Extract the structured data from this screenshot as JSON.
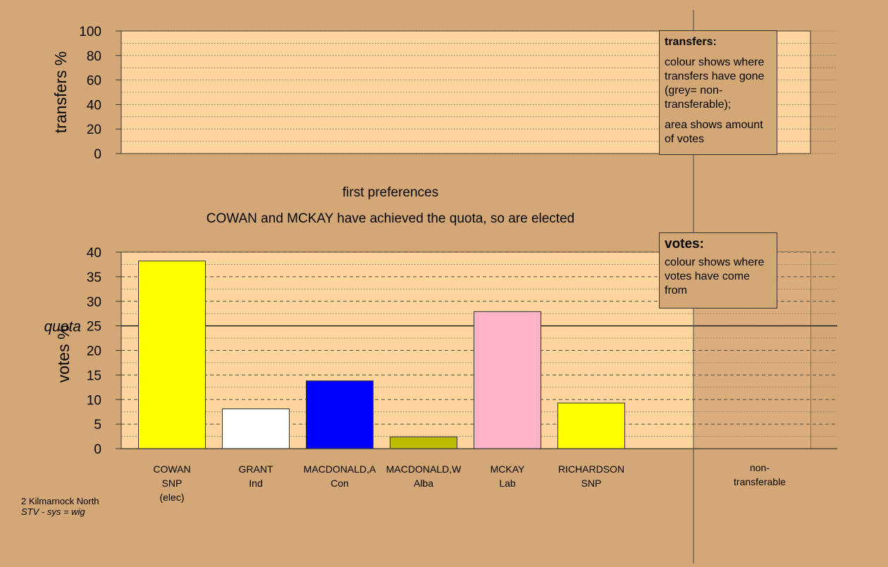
{
  "subtitle": "first preferences",
  "headline": "COWAN and MCKAY have achieved the quota, so are elected",
  "footnote": {
    "line1": "2 Kilmarnock North",
    "line2": "STV - sys = wig"
  },
  "legend_transfers": {
    "title": "transfers:",
    "para1": "colour shows where transfers have gone (grey= non-transferable);",
    "para2": "area shows amount of votes"
  },
  "legend_votes": {
    "title": "votes:",
    "para1": "colour shows where votes have come from"
  },
  "chart_data": [
    {
      "type": "bar",
      "title": "",
      "ylabel": "transfers %",
      "ylim": [
        0,
        100
      ],
      "yticks": [
        0,
        20,
        40,
        60,
        80,
        100
      ],
      "categories": [],
      "values": []
    },
    {
      "type": "bar",
      "title": "",
      "ylabel": "votes %",
      "ylim": [
        0,
        40
      ],
      "yticks": [
        0,
        5,
        10,
        15,
        20,
        25,
        30,
        35,
        40
      ],
      "quota": 25,
      "quota_label": "quota",
      "categories": [
        {
          "lines": [
            "COWAN",
            "SNP",
            "(elec)"
          ],
          "value": 38.2,
          "color": "#ffff00"
        },
        {
          "lines": [
            "GRANT",
            "Ind"
          ],
          "value": 8.1,
          "color": "#ffffff"
        },
        {
          "lines": [
            "MACDONALD,A",
            "Con"
          ],
          "value": 13.8,
          "color": "#0000ff"
        },
        {
          "lines": [
            "MACDONALD,W",
            "Alba"
          ],
          "value": 2.4,
          "color": "#bdbd00"
        },
        {
          "lines": [
            "MCKAY",
            "Lab"
          ],
          "value": 27.9,
          "color": "#ffb3c6"
        },
        {
          "lines": [
            "RICHARDSON",
            "SNP"
          ],
          "value": 9.3,
          "color": "#ffff00"
        }
      ],
      "nontransferable_label": [
        "non-",
        "transferable"
      ],
      "colors": {
        "plot_bg": "#fdd59d",
        "page_bg": "#d4a876",
        "nontransferable_bg": "#dcae7e"
      }
    }
  ]
}
